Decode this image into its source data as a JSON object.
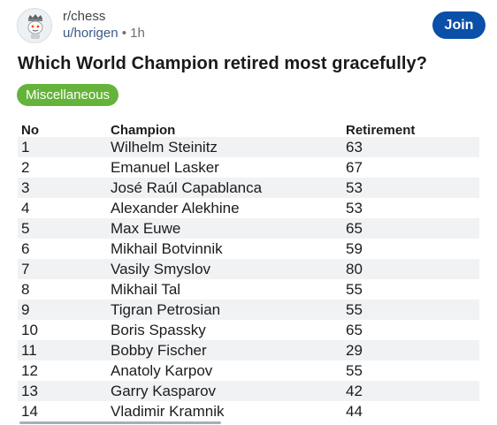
{
  "post": {
    "subreddit": "r/chess",
    "username": "u/horigen",
    "separator": "•",
    "age": "1h",
    "join_label": "Join",
    "title": "Which World Champion retired most gracefully?",
    "flair": "Miscellaneous",
    "flair_color": "#65b33b",
    "join_color": "#0a4fa8"
  },
  "table": {
    "headers": [
      "No",
      "Champion",
      "Retirement"
    ],
    "rows": [
      [
        "1",
        "Wilhelm Steinitz",
        "63"
      ],
      [
        "2",
        "Emanuel Lasker",
        "67"
      ],
      [
        "3",
        "José Raúl Capablanca",
        "53"
      ],
      [
        "4",
        "Alexander Alekhine",
        "53"
      ],
      [
        "5",
        "Max Euwe",
        "65"
      ],
      [
        "6",
        "Mikhail Botvinnik",
        "59"
      ],
      [
        "7",
        "Vasily Smyslov",
        "80"
      ],
      [
        "8",
        "Mikhail Tal",
        "55"
      ],
      [
        "9",
        "Tigran Petrosian",
        "55"
      ],
      [
        "10",
        "Boris Spassky",
        "65"
      ],
      [
        "11",
        "Bobby Fischer",
        "29"
      ],
      [
        "12",
        "Anatoly Karpov",
        "55"
      ],
      [
        "13",
        "Garry Kasparov",
        "42"
      ],
      [
        "14",
        "Vladimir Kramnik",
        "44"
      ]
    ]
  },
  "icons": {
    "avatar": "chess-piece-avatar-icon"
  }
}
